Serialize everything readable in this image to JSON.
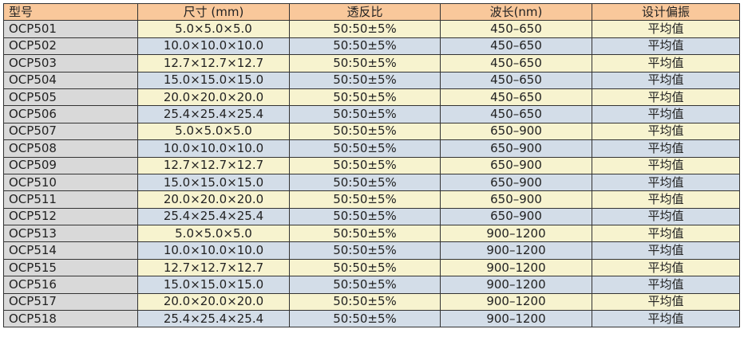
{
  "headers": [
    "型号",
    "尺寸 (mm)",
    "透反比",
    "波长(nm)",
    "设计偏振"
  ],
  "rows": [
    [
      "OCP501",
      "5.0×5.0×5.0",
      "50:50±5%",
      "450–650",
      "平均值"
    ],
    [
      "OCP502",
      "10.0×10.0×10.0",
      "50:50±5%",
      "450–650",
      "平均值"
    ],
    [
      "OCP503",
      "12.7×12.7×12.7",
      "50:50±5%",
      "450–650",
      "平均值"
    ],
    [
      "OCP504",
      "15.0×15.0×15.0",
      "50:50±5%",
      "450–650",
      "平均值"
    ],
    [
      "OCP505",
      "20.0×20.0×20.0",
      "50:50±5%",
      "450–650",
      "平均值"
    ],
    [
      "OCP506",
      "25.4×25.4×25.4",
      "50:50±5%",
      "450–650",
      "平均值"
    ],
    [
      "OCP507",
      "5.0×5.0×5.0",
      "50:50±5%",
      "650–900",
      "平均值"
    ],
    [
      "OCP508",
      "10.0×10.0×10.0",
      "50:50±5%",
      "650–900",
      "平均值"
    ],
    [
      "OCP509",
      "12.7×12.7×12.7",
      "50:50±5%",
      "650–900",
      "平均值"
    ],
    [
      "OCP510",
      "15.0×15.0×15.0",
      "50:50±5%",
      "650–900",
      "平均值"
    ],
    [
      "OCP511",
      "20.0×20.0×20.0",
      "50:50±5%",
      "650–900",
      "平均值"
    ],
    [
      "OCP512",
      "25.4×25.4×25.4",
      "50:50±5%",
      "650–900",
      "平均值"
    ],
    [
      "OCP513",
      "5.0×5.0×5.0",
      "50:50±5%",
      "900–1200",
      "平均值"
    ],
    [
      "OCP514",
      "10.0×10.0×10.0",
      "50:50±5%",
      "900–1200",
      "平均值"
    ],
    [
      "OCP515",
      "12.7×12.7×12.7",
      "50:50±5%",
      "900–1200",
      "平均值"
    ],
    [
      "OCP516",
      "15.0×15.0×15.0",
      "50:50±5%",
      "900–1200",
      "平均值"
    ],
    [
      "OCP517",
      "20.0×20.0×20.0",
      "50:50±5%",
      "900–1200",
      "平均值"
    ],
    [
      "OCP518",
      "25.4×25.4×25.4",
      "50:50±5%",
      "900–1200",
      "平均值"
    ]
  ],
  "colors": {
    "header": "#f9c89b",
    "first_col": "#d9d9d9",
    "row_yellow": "#f7f3cf",
    "row_blue": "#d3dde8"
  }
}
